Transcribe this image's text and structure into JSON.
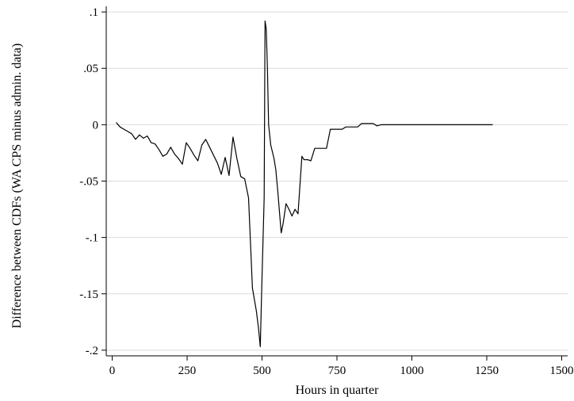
{
  "chart_data": {
    "type": "line",
    "title": "",
    "xlabel": "Hours in quarter",
    "ylabel": "Difference between CDFs (WA CPS minus admin. data)",
    "xlim": [
      -20,
      1520
    ],
    "ylim": [
      -0.205,
      0.105
    ],
    "x_ticks": [
      0,
      250,
      500,
      750,
      1000,
      1250,
      1500
    ],
    "x_tick_labels": [
      "0",
      "250",
      "500",
      "750",
      "1000",
      "1250",
      "1500"
    ],
    "y_ticks": [
      0.1,
      0.05,
      0,
      -0.05,
      -0.1,
      -0.15,
      -0.2
    ],
    "y_tick_labels": [
      ".1",
      ".05",
      "0",
      "-.05",
      "-.1",
      "-.15",
      "-.2"
    ],
    "grid": "horizontal",
    "line_color": "#000000",
    "grid_color": "#dcdcdc",
    "series": [
      {
        "x": [
          13,
          26,
          39,
          52,
          65,
          78,
          91,
          104,
          117,
          130,
          143,
          156,
          169,
          182,
          195,
          208,
          221,
          234,
          247,
          260,
          273,
          286,
          299,
          312,
          325,
          338,
          351,
          364,
          377,
          390,
          403,
          416,
          429,
          442,
          455,
          468,
          481,
          488,
          494,
          500,
          507,
          510,
          514,
          518,
          522,
          529,
          540,
          546,
          553,
          559,
          564,
          570,
          580,
          590,
          600,
          610,
          620,
          633,
          640,
          646,
          652,
          663,
          676,
          689,
          702,
          715,
          728,
          741,
          754,
          767,
          780,
          793,
          806,
          819,
          832,
          845,
          858,
          871,
          884,
          897,
          910,
          923,
          936,
          949,
          962,
          975,
          988,
          1001,
          1014,
          1027,
          1040,
          1053,
          1066,
          1079,
          1092,
          1105,
          1118,
          1131,
          1144,
          1157,
          1170,
          1183,
          1196,
          1209,
          1222,
          1235,
          1248,
          1261,
          1270
        ],
        "y": [
          0.002,
          -0.002,
          -0.004,
          -0.006,
          -0.008,
          -0.013,
          -0.009,
          -0.012,
          -0.01,
          -0.016,
          -0.017,
          -0.022,
          -0.028,
          -0.026,
          -0.02,
          -0.026,
          -0.03,
          -0.035,
          -0.016,
          -0.021,
          -0.027,
          -0.032,
          -0.018,
          -0.013,
          -0.02,
          -0.027,
          -0.034,
          -0.044,
          -0.029,
          -0.045,
          -0.011,
          -0.03,
          -0.046,
          -0.048,
          -0.065,
          -0.145,
          -0.165,
          -0.18,
          -0.197,
          -0.135,
          -0.065,
          0.092,
          0.085,
          0.05,
          0.0,
          -0.018,
          -0.03,
          -0.04,
          -0.06,
          -0.08,
          -0.096,
          -0.088,
          -0.07,
          -0.075,
          -0.081,
          -0.075,
          -0.079,
          -0.028,
          -0.031,
          -0.031,
          -0.031,
          -0.032,
          -0.021,
          -0.021,
          -0.021,
          -0.021,
          -0.004,
          -0.004,
          -0.004,
          -0.004,
          -0.002,
          -0.002,
          -0.002,
          -0.002,
          0.001,
          0.001,
          0.001,
          0.001,
          -0.001,
          0.0,
          0.0,
          0.0,
          0.0,
          0.0,
          0.0,
          0.0,
          0.0,
          0.0,
          0.0,
          0.0,
          0.0,
          0.0,
          0.0,
          0.0,
          0.0,
          0.0,
          0.0,
          0.0,
          0.0,
          0.0,
          0.0,
          0.0,
          0.0,
          0.0,
          0.0,
          0.0,
          0.0,
          0.0,
          0.0
        ]
      }
    ]
  }
}
